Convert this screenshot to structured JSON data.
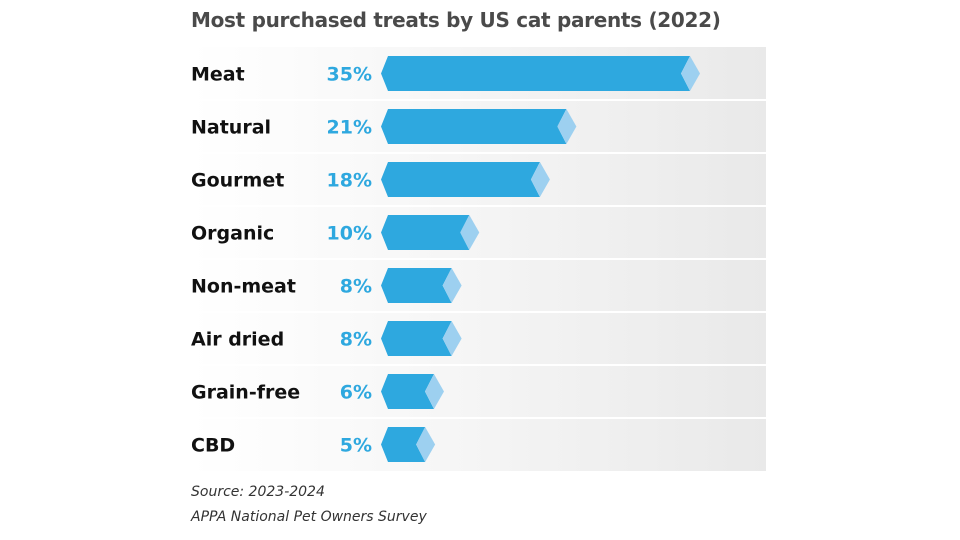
{
  "chart_data": {
    "type": "bar",
    "orientation": "horizontal",
    "title": "Most purchased treats by US cat parents (2022)",
    "categories": [
      "Meat",
      "Natural",
      "Gourmet",
      "Organic",
      "Non-meat",
      "Air dried",
      "Grain-free",
      "CBD"
    ],
    "values": [
      35,
      21,
      18,
      10,
      8,
      8,
      6,
      5
    ],
    "value_labels": [
      "35%",
      "21%",
      "18%",
      "10%",
      "8%",
      "8%",
      "6%",
      "5%"
    ],
    "unit": "%",
    "xlim": [
      0,
      35
    ],
    "grid": false,
    "legend": "none",
    "colors": {
      "bar": "#2ea8df",
      "tip": "#9dd0f0",
      "label": "#2ea8df",
      "category": "#111111",
      "background_right": "#e9e9e9"
    }
  },
  "source": {
    "line1": "Source: 2023-2024",
    "line2": "APPA National Pet Owners Survey"
  }
}
